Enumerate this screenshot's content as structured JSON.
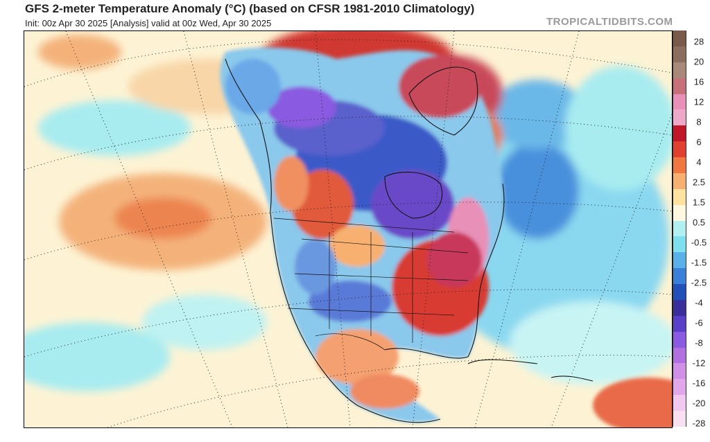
{
  "header": {
    "title": "GFS 2-meter Temperature Anomaly (°C) (based on CFSR 1981-2010 Climatology)",
    "subtitle": "Init: 00z Apr 30 2025   [Analysis]   valid at 00z Wed, Apr 30 2025",
    "watermark": "TROPICALTIDBITS.COM"
  },
  "map": {
    "region": "North America",
    "projection_graticule": "dotted"
  },
  "colorbar": {
    "labels": [
      "28",
      "20",
      "16",
      "12",
      "8",
      "6",
      "4",
      "2.5",
      "1.5",
      "0.5",
      "-0.5",
      "-1.5",
      "-2.5",
      "-4",
      "-6",
      "-8",
      "-12",
      "-16",
      "-20",
      "-28"
    ],
    "colors": [
      "#7a5a4a",
      "#8c6e5e",
      "#a88878",
      "#c8707a",
      "#e890b8",
      "#f0a8c8",
      "#c01828",
      "#e04030",
      "#f07840",
      "#f8b070",
      "#fde2a0",
      "#fff8e0",
      "#b0f0f0",
      "#7ee0ee",
      "#5ab0e8",
      "#3a80d8",
      "#2050b8",
      "#3a2e9a",
      "#5a40c8",
      "#8a5ae0",
      "#b070e0",
      "#d090e8",
      "#e0a8e8",
      "#f0c8f0",
      "#f8e0f0"
    ]
  }
}
